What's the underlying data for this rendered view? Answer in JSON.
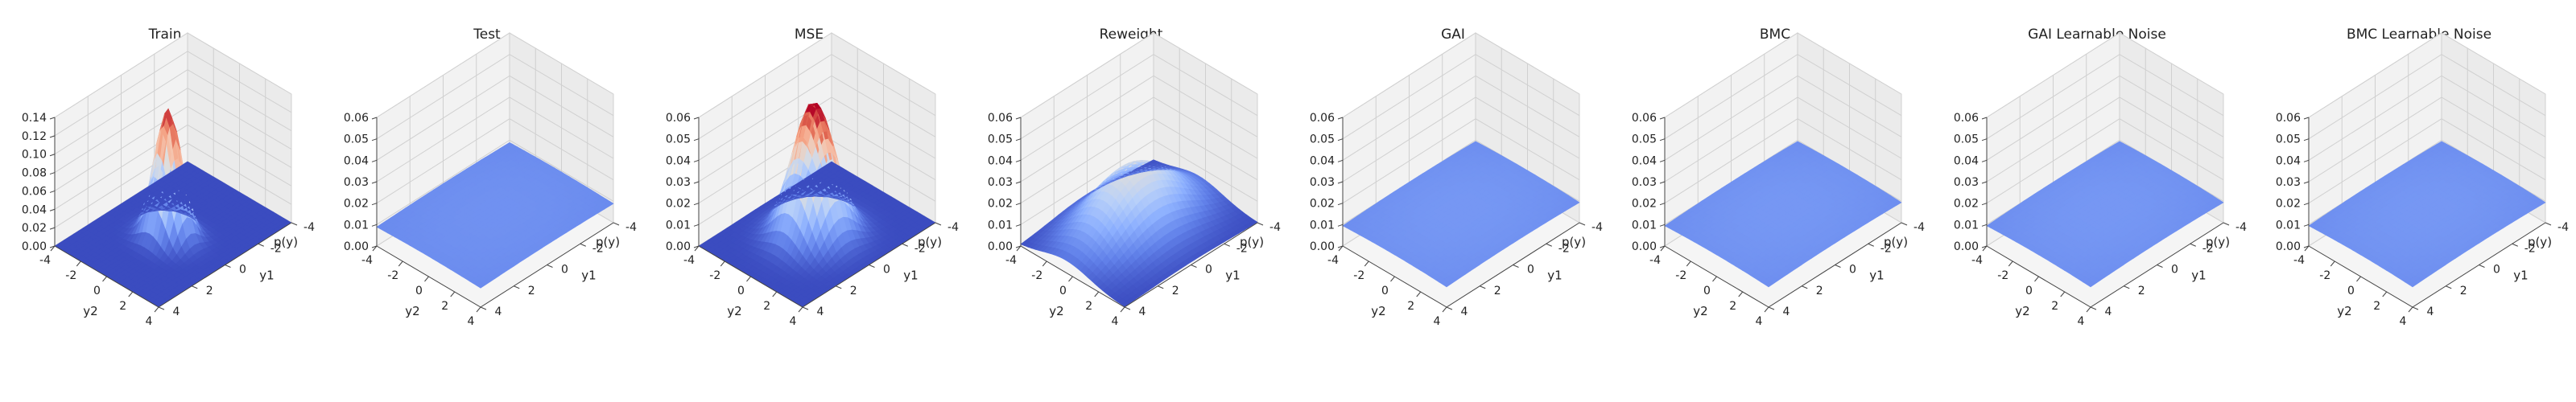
{
  "figure": {
    "panels": [
      {
        "title": "Train"
      },
      {
        "title": "Test"
      },
      {
        "title": "MSE"
      },
      {
        "title": "Reweight"
      },
      {
        "title": "GAI"
      },
      {
        "title": "BMC"
      },
      {
        "title": "GAI Learnable Noise"
      },
      {
        "title": "BMC Learnable Noise"
      }
    ]
  },
  "chart_data": [
    {
      "type": "surface",
      "title": "Train",
      "xlabel": "y2",
      "ylabel": "y1",
      "zlabel": "p(y)",
      "xticks": [
        -4,
        -2,
        0,
        2,
        4
      ],
      "yticks": [
        -4,
        -2,
        0,
        2,
        4
      ],
      "zticks": [
        "0.00",
        "0.02",
        "0.04",
        "0.06",
        "0.08",
        "0.10",
        "0.12",
        "0.14"
      ],
      "zlim": [
        0,
        0.14
      ],
      "colormap": "coolwarm",
      "components": [
        {
          "y1": 0.3,
          "y2": 0.0,
          "s1": 0.55,
          "s2": 0.85,
          "peak": 0.14
        }
      ],
      "base": 0.0
    },
    {
      "type": "surface",
      "title": "Test",
      "xlabel": "y2",
      "ylabel": "y1",
      "zlabel": "p(y)",
      "xticks": [
        -4,
        -2,
        0,
        2,
        4
      ],
      "yticks": [
        -4,
        -2,
        0,
        2,
        4
      ],
      "zticks": [
        "0.00",
        "0.01",
        "0.02",
        "0.03",
        "0.04",
        "0.05",
        "0.06"
      ],
      "zlim": [
        0,
        0.06
      ],
      "colormap": "coolwarm",
      "components": [
        {
          "y1": 0,
          "y2": 0,
          "s1": 7.0,
          "s2": 7.0,
          "peak": 0.004
        }
      ],
      "base": 0.006
    },
    {
      "type": "surface",
      "title": "MSE",
      "xlabel": "y2",
      "ylabel": "y1",
      "zlabel": "p(y)",
      "xticks": [
        -4,
        -2,
        0,
        2,
        4
      ],
      "yticks": [
        -4,
        -2,
        0,
        2,
        4
      ],
      "zticks": [
        "0.00",
        "0.01",
        "0.02",
        "0.03",
        "0.04",
        "0.05",
        "0.06"
      ],
      "zlim": [
        0,
        0.06
      ],
      "colormap": "coolwarm",
      "components": [
        {
          "y1": 0.2,
          "y2": 0.0,
          "s1": 0.95,
          "s2": 1.2,
          "peak": 0.063
        }
      ],
      "base": 0.0
    },
    {
      "type": "surface",
      "title": "Reweight",
      "xlabel": "y2",
      "ylabel": "y1",
      "zlabel": "p(y)",
      "xticks": [
        -4,
        -2,
        0,
        2,
        4
      ],
      "yticks": [
        -4,
        -2,
        0,
        2,
        4
      ],
      "zticks": [
        "0.00",
        "0.01",
        "0.02",
        "0.03",
        "0.04",
        "0.05",
        "0.06"
      ],
      "zlim": [
        0,
        0.06
      ],
      "colormap": "coolwarm",
      "components": [
        {
          "y1": 0.0,
          "y2": -0.5,
          "s1": 2.2,
          "s2": 1.8,
          "peak": 0.03
        }
      ],
      "base": 0.0
    },
    {
      "type": "surface",
      "title": "GAI",
      "xlabel": "y2",
      "ylabel": "y1",
      "zlabel": "p(y)",
      "xticks": [
        -4,
        -2,
        0,
        2,
        4
      ],
      "yticks": [
        -4,
        -2,
        0,
        2,
        4
      ],
      "zticks": [
        "0.00",
        "0.01",
        "0.02",
        "0.03",
        "0.04",
        "0.05",
        "0.06"
      ],
      "zlim": [
        0,
        0.06
      ],
      "colormap": "coolwarm",
      "components": [
        {
          "y1": 0,
          "y2": 0,
          "s1": 6.5,
          "s2": 6.5,
          "peak": 0.005
        }
      ],
      "base": 0.006
    },
    {
      "type": "surface",
      "title": "BMC",
      "xlabel": "y2",
      "ylabel": "y1",
      "zlabel": "p(y)",
      "xticks": [
        -4,
        -2,
        0,
        2,
        4
      ],
      "yticks": [
        -4,
        -2,
        0,
        2,
        4
      ],
      "zticks": [
        "0.00",
        "0.01",
        "0.02",
        "0.03",
        "0.04",
        "0.05",
        "0.06"
      ],
      "zlim": [
        0,
        0.06
      ],
      "colormap": "coolwarm",
      "components": [
        {
          "y1": 0,
          "y2": 0,
          "s1": 6.5,
          "s2": 6.5,
          "peak": 0.005
        }
      ],
      "base": 0.006
    },
    {
      "type": "surface",
      "title": "GAI Learnable Noise",
      "xlabel": "y2",
      "ylabel": "y1",
      "zlabel": "p(y)",
      "xticks": [
        -4,
        -2,
        0,
        2,
        4
      ],
      "yticks": [
        -4,
        -2,
        0,
        2,
        4
      ],
      "zticks": [
        "0.00",
        "0.01",
        "0.02",
        "0.03",
        "0.04",
        "0.05",
        "0.06"
      ],
      "zlim": [
        0,
        0.06
      ],
      "colormap": "coolwarm",
      "components": [
        {
          "y1": 0,
          "y2": 0,
          "s1": 6.5,
          "s2": 6.5,
          "peak": 0.005
        }
      ],
      "base": 0.006
    },
    {
      "type": "surface",
      "title": "BMC Learnable Noise",
      "xlabel": "y2",
      "ylabel": "y1",
      "zlabel": "p(y)",
      "xticks": [
        -4,
        -2,
        0,
        2,
        4
      ],
      "yticks": [
        -4,
        -2,
        0,
        2,
        4
      ],
      "zticks": [
        "0.00",
        "0.01",
        "0.02",
        "0.03",
        "0.04",
        "0.05",
        "0.06"
      ],
      "zlim": [
        0,
        0.06
      ],
      "colormap": "coolwarm",
      "components": [
        {
          "y1": 0,
          "y2": 0,
          "s1": 6.5,
          "s2": 6.5,
          "peak": 0.005
        }
      ],
      "base": 0.006
    }
  ]
}
